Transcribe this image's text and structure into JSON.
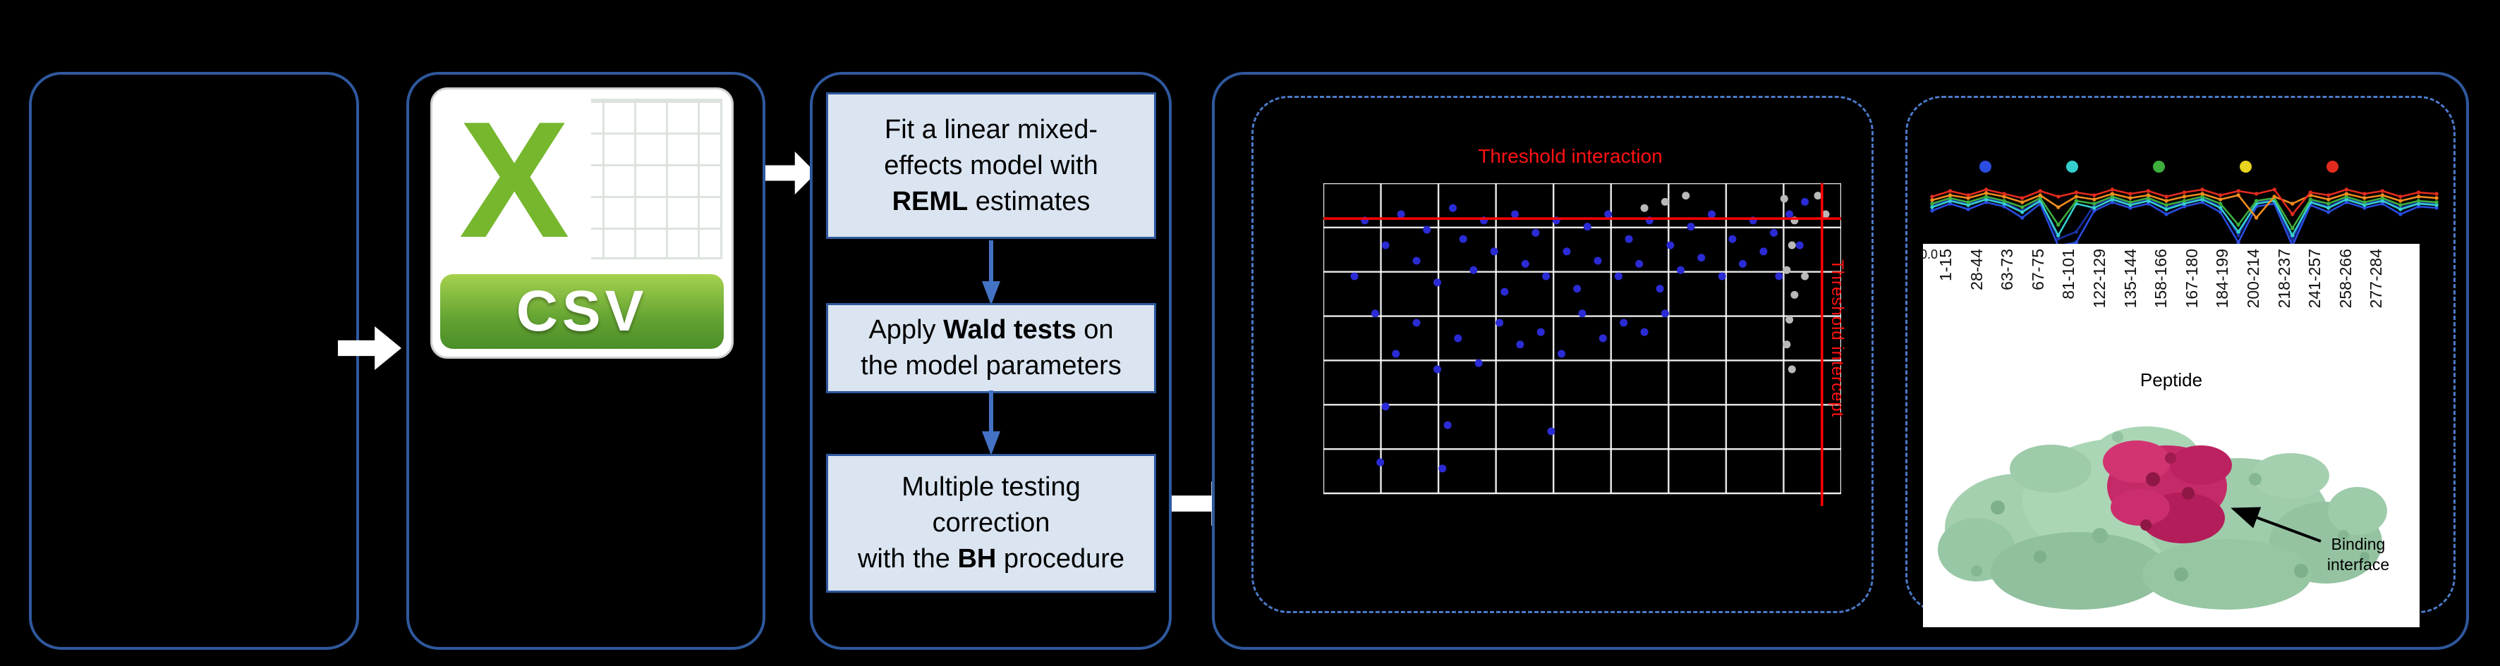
{
  "figure": {
    "csv": {
      "letter": "X",
      "banner": "CSV"
    },
    "process": {
      "steps": [
        {
          "lines": [
            [
              [
                "Fit a linear mixed-",
                false
              ]
            ],
            [
              [
                "effects model with",
                false
              ]
            ],
            [
              [
                "REML",
                true
              ],
              [
                " estimates",
                false
              ]
            ]
          ]
        },
        {
          "lines": [
            [
              [
                "Apply ",
                false
              ],
              [
                "Wald tests",
                true
              ],
              [
                " on",
                false
              ]
            ],
            [
              [
                "the model parameters",
                false
              ]
            ]
          ]
        },
        {
          "lines": [
            [
              [
                "Multiple testing",
                false
              ]
            ],
            [
              [
                "correction",
                false
              ]
            ],
            [
              [
                "with the ",
                false
              ],
              [
                "BH",
                true
              ],
              [
                " procedure",
                false
              ]
            ]
          ]
        }
      ]
    },
    "protein": {
      "annotation_line1": "Binding",
      "annotation_line2": "interface"
    }
  },
  "chart_data": [
    {
      "type": "scatter",
      "title": "Threshold interaction",
      "threshold_labels": {
        "horizontal": "Threshold interaction",
        "vertical": "Threshold intercept"
      },
      "threshold_color": "#ff0000",
      "hline_rel": 0.114,
      "vline_rel": 0.963,
      "grid": {
        "v_lines": 10,
        "h_lines": 8
      },
      "series": [
        {
          "name": "blue-points",
          "color": "#2b2bd5",
          "points": [
            [
              0.06,
              0.3
            ],
            [
              0.08,
              0.12
            ],
            [
              0.1,
              0.42
            ],
            [
              0.11,
              0.9
            ],
            [
              0.12,
              0.2
            ],
            [
              0.12,
              0.72
            ],
            [
              0.14,
              0.55
            ],
            [
              0.15,
              0.1
            ],
            [
              0.18,
              0.25
            ],
            [
              0.18,
              0.45
            ],
            [
              0.2,
              0.15
            ],
            [
              0.22,
              0.32
            ],
            [
              0.22,
              0.6
            ],
            [
              0.23,
              0.92
            ],
            [
              0.24,
              0.78
            ],
            [
              0.25,
              0.08
            ],
            [
              0.26,
              0.5
            ],
            [
              0.27,
              0.18
            ],
            [
              0.29,
              0.28
            ],
            [
              0.3,
              0.58
            ],
            [
              0.31,
              0.12
            ],
            [
              0.33,
              0.22
            ],
            [
              0.34,
              0.45
            ],
            [
              0.35,
              0.35
            ],
            [
              0.37,
              0.1
            ],
            [
              0.38,
              0.52
            ],
            [
              0.39,
              0.26
            ],
            [
              0.41,
              0.16
            ],
            [
              0.42,
              0.48
            ],
            [
              0.43,
              0.3
            ],
            [
              0.44,
              0.8
            ],
            [
              0.45,
              0.12
            ],
            [
              0.46,
              0.55
            ],
            [
              0.47,
              0.22
            ],
            [
              0.49,
              0.34
            ],
            [
              0.5,
              0.42
            ],
            [
              0.51,
              0.14
            ],
            [
              0.53,
              0.25
            ],
            [
              0.54,
              0.5
            ],
            [
              0.55,
              0.1
            ],
            [
              0.57,
              0.3
            ],
            [
              0.58,
              0.45
            ],
            [
              0.59,
              0.18
            ],
            [
              0.61,
              0.26
            ],
            [
              0.62,
              0.48
            ],
            [
              0.63,
              0.12
            ],
            [
              0.65,
              0.34
            ],
            [
              0.66,
              0.42
            ],
            [
              0.67,
              0.2
            ],
            [
              0.69,
              0.28
            ],
            [
              0.71,
              0.14
            ],
            [
              0.73,
              0.24
            ],
            [
              0.75,
              0.1
            ],
            [
              0.77,
              0.3
            ],
            [
              0.79,
              0.18
            ],
            [
              0.81,
              0.26
            ],
            [
              0.83,
              0.12
            ],
            [
              0.85,
              0.22
            ],
            [
              0.87,
              0.16
            ],
            [
              0.88,
              0.3
            ],
            [
              0.9,
              0.1
            ],
            [
              0.92,
              0.2
            ],
            [
              0.93,
              0.06
            ]
          ]
        },
        {
          "name": "gray-points",
          "color": "#b9b9b9",
          "points": [
            [
              0.62,
              0.08
            ],
            [
              0.66,
              0.06
            ],
            [
              0.7,
              0.04
            ],
            [
              0.89,
              0.05
            ],
            [
              0.91,
              0.12
            ],
            [
              0.905,
              0.2
            ],
            [
              0.895,
              0.28
            ],
            [
              0.91,
              0.36
            ],
            [
              0.9,
              0.44
            ],
            [
              0.895,
              0.52
            ],
            [
              0.905,
              0.6
            ],
            [
              0.93,
              0.3
            ],
            [
              0.955,
              0.04
            ],
            [
              0.97,
              0.1
            ]
          ]
        }
      ]
    },
    {
      "type": "line",
      "xlabel": "Peptide",
      "y_tick": "0.0",
      "x_labels": [
        "1-15",
        "28-44",
        "63-73",
        "67-75",
        "81-101",
        "122-129",
        "135-144",
        "158-166",
        "167-180",
        "184-199",
        "200-214",
        "218-237",
        "241-257",
        "258-266",
        "277-284"
      ],
      "legend_colors": [
        "#2a4ce0",
        "#35cfcf",
        "#3dae3d",
        "#e8d31f",
        "#e22b1e"
      ],
      "series": [
        {
          "name": "dark-blue",
          "color": "#1a2f9e",
          "values": [
            0.42,
            0.34,
            0.4,
            0.32,
            0.38,
            0.5,
            0.34,
            0.9,
            0.8,
            0.42,
            0.32,
            0.4,
            0.34,
            0.46,
            0.38,
            0.32,
            0.44,
            0.85,
            0.38,
            0.34,
            0.92,
            0.36,
            0.44,
            0.32,
            0.4,
            0.34,
            0.46,
            0.38,
            0.4
          ]
        },
        {
          "name": "blue",
          "color": "#2a4ce0",
          "values": [
            0.5,
            0.4,
            0.48,
            0.38,
            0.44,
            0.6,
            0.4,
            1.0,
            0.95,
            0.5,
            0.38,
            0.46,
            0.4,
            0.55,
            0.44,
            0.38,
            0.52,
            0.95,
            0.44,
            0.4,
            1.0,
            0.42,
            0.52,
            0.38,
            0.46,
            0.4,
            0.55,
            0.44,
            0.46
          ]
        },
        {
          "name": "teal",
          "color": "#35cfcf",
          "values": [
            0.45,
            0.36,
            0.42,
            0.34,
            0.4,
            0.52,
            0.36,
            0.85,
            0.4,
            0.46,
            0.34,
            0.42,
            0.36,
            0.48,
            0.4,
            0.34,
            0.46,
            0.8,
            0.4,
            0.36,
            0.85,
            0.38,
            0.46,
            0.34,
            0.42,
            0.36,
            0.48,
            0.4,
            0.42
          ]
        },
        {
          "name": "green",
          "color": "#3dae3d",
          "values": [
            0.4,
            0.32,
            0.38,
            0.3,
            0.36,
            0.45,
            0.32,
            0.7,
            0.36,
            0.4,
            0.3,
            0.38,
            0.32,
            0.42,
            0.36,
            0.3,
            0.4,
            0.7,
            0.36,
            0.32,
            0.75,
            0.34,
            0.4,
            0.3,
            0.38,
            0.32,
            0.42,
            0.36,
            0.38
          ]
        },
        {
          "name": "orange",
          "color": "#f08c1e",
          "values": [
            0.35,
            0.28,
            0.32,
            0.25,
            0.3,
            0.38,
            0.28,
            0.45,
            0.3,
            0.34,
            0.26,
            0.32,
            0.28,
            0.36,
            0.3,
            0.26,
            0.34,
            0.28,
            0.6,
            0.3,
            0.4,
            0.28,
            0.34,
            0.26,
            0.32,
            0.28,
            0.36,
            0.3,
            0.32
          ]
        },
        {
          "name": "red",
          "color": "#e22b1e",
          "values": [
            0.3,
            0.22,
            0.28,
            0.2,
            0.26,
            0.32,
            0.22,
            0.3,
            0.24,
            0.28,
            0.2,
            0.26,
            0.22,
            0.3,
            0.24,
            0.2,
            0.28,
            0.22,
            0.26,
            0.2,
            0.55,
            0.24,
            0.28,
            0.2,
            0.26,
            0.22,
            0.3,
            0.24,
            0.26
          ]
        }
      ]
    }
  ]
}
